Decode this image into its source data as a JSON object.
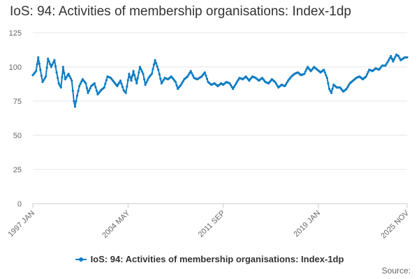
{
  "chart_data": {
    "type": "line",
    "title": "IoS: 94: Activities of membership organisations: Index-1dp",
    "xlabel": "",
    "ylabel": "",
    "ylim": [
      0,
      125
    ],
    "yticks": [
      0,
      25,
      50,
      75,
      100,
      125
    ],
    "x_range": [
      "1997 JAN",
      "2025 NOV"
    ],
    "x_tick_labels": [
      "1997 JAN",
      "2004 MAY",
      "2011 SEP",
      "2019 JAN",
      "2025 NOV"
    ],
    "grid": true,
    "legend_position": "bottom",
    "series": [
      {
        "name": "IoS: 94: Activities of membership organisations: Index-1dp",
        "color": "#0e7cc2",
        "anchor_points": [
          [
            "1997-01",
            94
          ],
          [
            "1997-04",
            97
          ],
          [
            "1997-06",
            107
          ],
          [
            "1997-08",
            98
          ],
          [
            "1997-10",
            89
          ],
          [
            "1998-01",
            93
          ],
          [
            "1998-03",
            106
          ],
          [
            "1998-06",
            100
          ],
          [
            "1998-09",
            105
          ],
          [
            "1998-11",
            96
          ],
          [
            "1999-01",
            88
          ],
          [
            "1999-03",
            85
          ],
          [
            "1999-05",
            100
          ],
          [
            "1999-07",
            91
          ],
          [
            "1999-10",
            95
          ],
          [
            "2000-01",
            90
          ],
          [
            "2000-03",
            75
          ],
          [
            "2000-04",
            71
          ],
          [
            "2000-06",
            79
          ],
          [
            "2000-08",
            86
          ],
          [
            "2000-11",
            91
          ],
          [
            "2001-02",
            88
          ],
          [
            "2001-04",
            81
          ],
          [
            "2001-07",
            86
          ],
          [
            "2001-10",
            88
          ],
          [
            "2002-01",
            80
          ],
          [
            "2002-04",
            83
          ],
          [
            "2002-07",
            85
          ],
          [
            "2002-10",
            93
          ],
          [
            "2003-01",
            92
          ],
          [
            "2003-04",
            89
          ],
          [
            "2003-07",
            86
          ],
          [
            "2003-10",
            90
          ],
          [
            "2004-01",
            83
          ],
          [
            "2004-03",
            81
          ],
          [
            "2004-06",
            95
          ],
          [
            "2004-08",
            90
          ],
          [
            "2004-10",
            97
          ],
          [
            "2005-01",
            88
          ],
          [
            "2005-04",
            100
          ],
          [
            "2005-07",
            95
          ],
          [
            "2005-09",
            87
          ],
          [
            "2005-12",
            92
          ],
          [
            "2006-03",
            95
          ],
          [
            "2006-06",
            105
          ],
          [
            "2006-09",
            98
          ],
          [
            "2006-12",
            88
          ],
          [
            "2007-03",
            92
          ],
          [
            "2007-06",
            91
          ],
          [
            "2007-09",
            93
          ],
          [
            "2008-01",
            89
          ],
          [
            "2008-03",
            84
          ],
          [
            "2008-06",
            87
          ],
          [
            "2008-09",
            91
          ],
          [
            "2008-12",
            93
          ],
          [
            "2009-03",
            97
          ],
          [
            "2009-06",
            92
          ],
          [
            "2009-09",
            91
          ],
          [
            "2010-01",
            93
          ],
          [
            "2010-04",
            96
          ],
          [
            "2010-07",
            89
          ],
          [
            "2010-10",
            87
          ],
          [
            "2011-01",
            88
          ],
          [
            "2011-04",
            86
          ],
          [
            "2011-07",
            88
          ],
          [
            "2011-09",
            87
          ],
          [
            "2011-12",
            89
          ],
          [
            "2012-03",
            88
          ],
          [
            "2012-06",
            84
          ],
          [
            "2012-09",
            88
          ],
          [
            "2012-12",
            92
          ],
          [
            "2013-03",
            91
          ],
          [
            "2013-06",
            93
          ],
          [
            "2013-09",
            90
          ],
          [
            "2013-12",
            93
          ],
          [
            "2014-03",
            92
          ],
          [
            "2014-06",
            90
          ],
          [
            "2014-09",
            92
          ],
          [
            "2014-12",
            89
          ],
          [
            "2015-03",
            88
          ],
          [
            "2015-06",
            91
          ],
          [
            "2015-09",
            89
          ],
          [
            "2015-12",
            85
          ],
          [
            "2016-03",
            87
          ],
          [
            "2016-06",
            86
          ],
          [
            "2016-09",
            90
          ],
          [
            "2016-12",
            93
          ],
          [
            "2017-03",
            95
          ],
          [
            "2017-06",
            96
          ],
          [
            "2017-09",
            94
          ],
          [
            "2017-12",
            95
          ],
          [
            "2018-03",
            100
          ],
          [
            "2018-06",
            97
          ],
          [
            "2018-09",
            100
          ],
          [
            "2018-12",
            98
          ],
          [
            "2019-03",
            96
          ],
          [
            "2019-06",
            98
          ],
          [
            "2019-09",
            92
          ],
          [
            "2019-11",
            84
          ],
          [
            "2020-01",
            81
          ],
          [
            "2020-03",
            87
          ],
          [
            "2020-06",
            85
          ],
          [
            "2020-09",
            85
          ],
          [
            "2020-12",
            82
          ],
          [
            "2021-03",
            84
          ],
          [
            "2021-06",
            88
          ],
          [
            "2021-09",
            90
          ],
          [
            "2021-12",
            92
          ],
          [
            "2022-03",
            93
          ],
          [
            "2022-06",
            91
          ],
          [
            "2022-09",
            93
          ],
          [
            "2022-12",
            98
          ],
          [
            "2023-03",
            97
          ],
          [
            "2023-06",
            99
          ],
          [
            "2023-09",
            98
          ],
          [
            "2023-12",
            101
          ],
          [
            "2024-03",
            101
          ],
          [
            "2024-06",
            105
          ],
          [
            "2024-08",
            108
          ],
          [
            "2024-10",
            104
          ],
          [
            "2025-01",
            109
          ],
          [
            "2025-03",
            108
          ],
          [
            "2025-05",
            105
          ],
          [
            "2025-07",
            106
          ],
          [
            "2025-09",
            107
          ],
          [
            "2025-11",
            107
          ]
        ]
      }
    ]
  },
  "footer": {
    "source_label": "Source:"
  }
}
